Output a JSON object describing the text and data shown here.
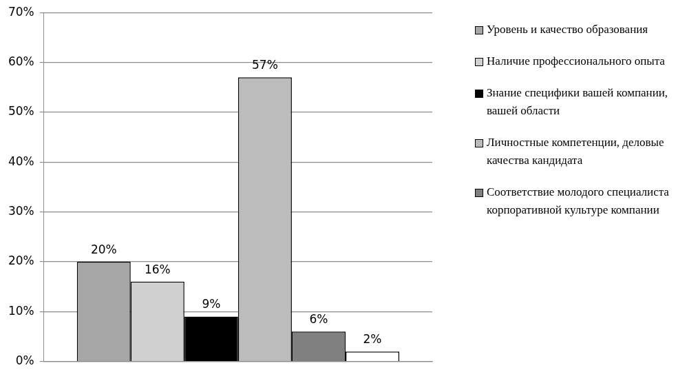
{
  "chart_data": {
    "type": "bar",
    "categories": [
      null
    ],
    "series": [
      {
        "name": "Уровень и качество образования",
        "color": "#a6a6a6",
        "values": [
          20
        ],
        "value_labels": [
          "20%"
        ]
      },
      {
        "name": "Наличие профессионального опыта",
        "color": "#d0d0d0",
        "values": [
          16
        ],
        "value_labels": [
          "16%"
        ]
      },
      {
        "name": "Знание специфики вашей компании, вашей области",
        "color": "#000000",
        "values": [
          9
        ],
        "value_labels": [
          "9%"
        ]
      },
      {
        "name": "Личностные компетенции, деловые качества кандидата",
        "color": "#bcbcbc",
        "values": [
          57
        ],
        "value_labels": [
          "57%"
        ]
      },
      {
        "name": "Соответствие молодого специалиста корпоративной культуре компании",
        "color": "#808080",
        "values": [
          6
        ],
        "value_labels": [
          "6%"
        ]
      },
      {
        "color": "#ffffff",
        "values": [
          2
        ],
        "value_labels": [
          "2%"
        ]
      }
    ],
    "ylim": [
      0,
      70
    ],
    "yticks": [
      {
        "value": 0,
        "label": "0%"
      },
      {
        "value": 10,
        "label": "10%"
      },
      {
        "value": 20,
        "label": "20%"
      },
      {
        "value": 30,
        "label": "30%"
      },
      {
        "value": 40,
        "label": "40%"
      },
      {
        "value": 50,
        "label": "50%"
      },
      {
        "value": 60,
        "label": "60%"
      },
      {
        "value": 70,
        "label": "70%"
      }
    ],
    "grid": "y",
    "legend": "right"
  }
}
